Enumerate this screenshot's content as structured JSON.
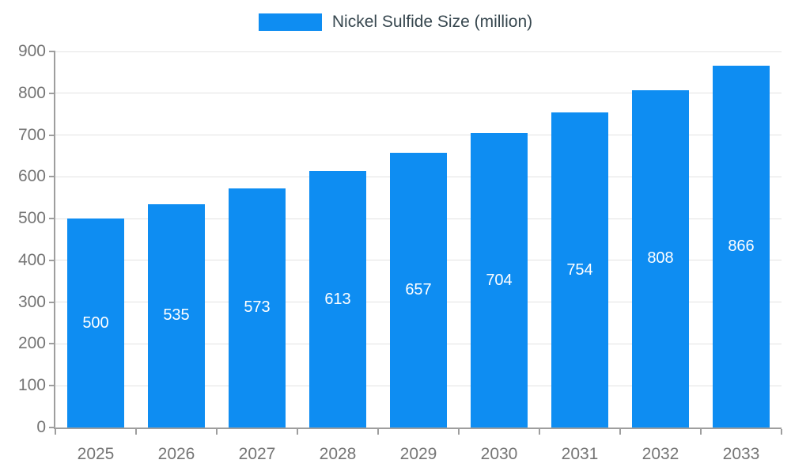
{
  "legend": {
    "label": "Nickel Sulfide Size (million)"
  },
  "colors": {
    "bar": "#0E8DF2",
    "bar_label": "#FFFFFF",
    "legend_text": "#37474F",
    "axis_text": "#757575",
    "gridline": "#E3E3E3",
    "axis_line": "#9E9E9E"
  },
  "chart_data": {
    "type": "bar",
    "title": "Nickel Sulfide Size (million)",
    "categories": [
      "2025",
      "2026",
      "2027",
      "2028",
      "2029",
      "2030",
      "2031",
      "2032",
      "2033"
    ],
    "values": [
      500,
      535,
      573,
      613,
      657,
      704,
      754,
      808,
      866
    ],
    "xlabel": "",
    "ylabel": "",
    "ylim": [
      0,
      900
    ],
    "ytick_step": 100,
    "grid": true,
    "legend_position": "top",
    "bar_labels_inside": true
  }
}
